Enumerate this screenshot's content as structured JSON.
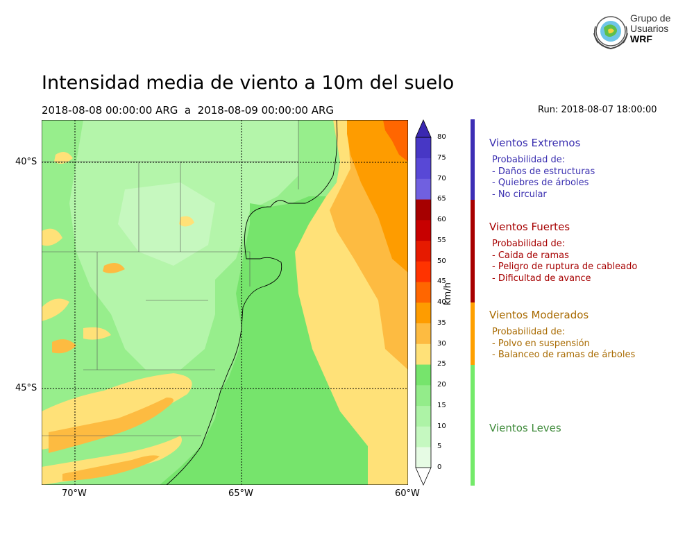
{
  "header": {
    "title": "Intensidad media de viento a 10m del suelo",
    "period": "2018-08-08 00:00:00 ARG  a  2018-08-09 00:00:00 ARG",
    "run": "Run: 2018-08-07 18:00:00"
  },
  "logo": {
    "line1": "Grupo de",
    "line2": "Usuarios",
    "line3": "WRF"
  },
  "map": {
    "lat_labels": [
      "40°S",
      "45°S"
    ],
    "lon_labels": [
      "70°W",
      "65°W",
      "60°W"
    ]
  },
  "colorbar": {
    "unit": "km/h",
    "ticks": [
      "0",
      "5",
      "10",
      "15",
      "20",
      "25",
      "30",
      "35",
      "40",
      "45",
      "50",
      "55",
      "60",
      "65",
      "70",
      "75",
      "80"
    ],
    "colors": [
      "#e6fbe4",
      "#c5f8c0",
      "#adf3a6",
      "#93ec8a",
      "#76e46c",
      "#ffe178",
      "#fdbb41",
      "#fe9c00",
      "#ff6600",
      "#ff3300",
      "#e61a00",
      "#c70000",
      "#a60000",
      "#7060e0",
      "#5848d6",
      "#4737c5",
      "#3a28b0"
    ]
  },
  "categories": [
    {
      "title": "Vientos Extremos",
      "color": "#3a2fb0",
      "heading": "Probabilidad de:",
      "items": [
        "- Daños de estructuras",
        "- Quiebres de árboles",
        "- No circular"
      ]
    },
    {
      "title": "Vientos Fuertes",
      "color": "#a60000",
      "heading": "Probabilidad de:",
      "items": [
        "- Caida de ramas",
        "- Peligro de ruptura de cableado",
        "- Dificultad de avance"
      ]
    },
    {
      "title": "Vientos Moderados",
      "color": "#a86a00",
      "heading": "Probabilidad de:",
      "items": [
        "- Polvo en suspensión",
        "- Balanceo de ramas de árboles"
      ]
    },
    {
      "title": "Vientos Leves",
      "color": "#3e8a3a"
    }
  ],
  "category_bar_colors": [
    "#3d2eb5",
    "#a80000",
    "#ffa000",
    "#74ea6a"
  ]
}
